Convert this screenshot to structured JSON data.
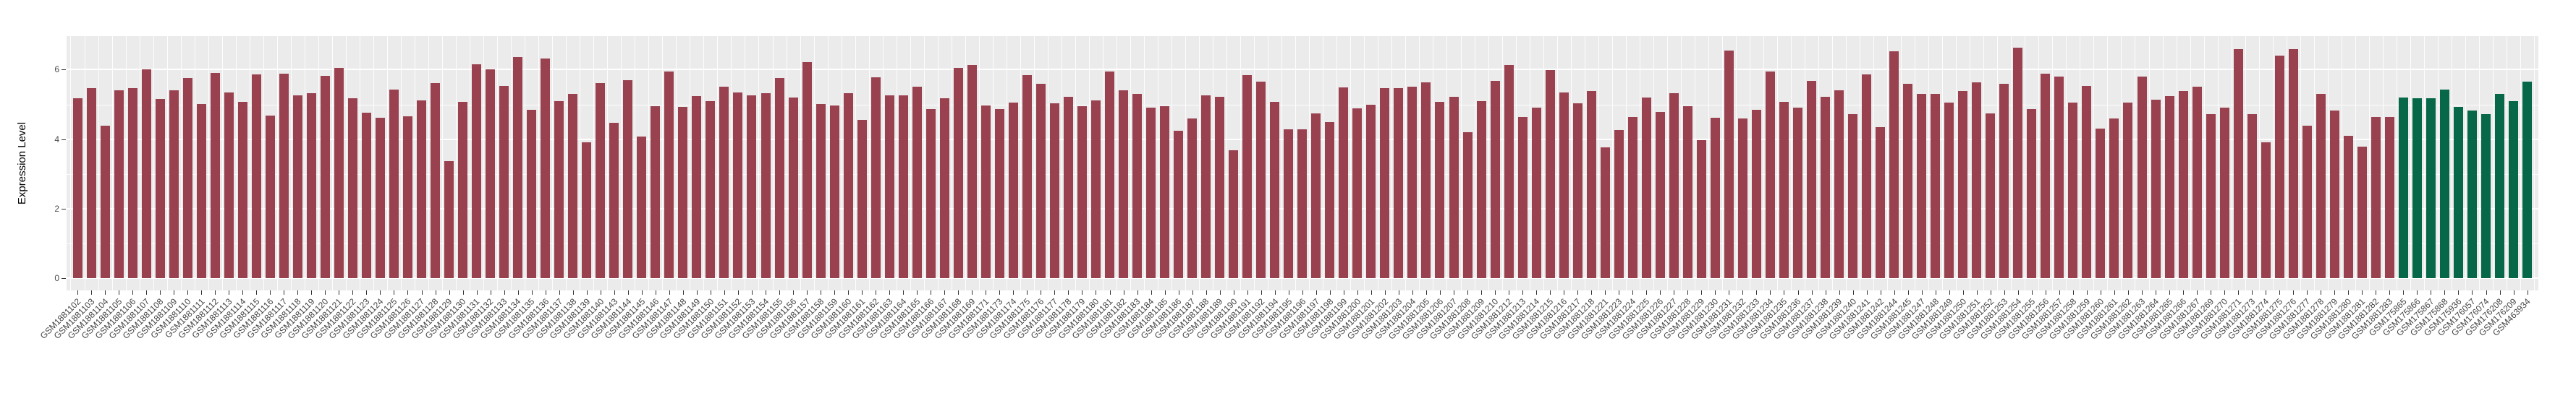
{
  "chart_data": {
    "type": "bar",
    "title": "",
    "xlabel": "",
    "ylabel": "Expression Level",
    "y_ticks": [
      0,
      2,
      4,
      6
    ],
    "y_minor_ticks": [
      1,
      3,
      5
    ],
    "ylim": [
      0,
      6.96
    ],
    "grid": true,
    "legend": false,
    "colors": {
      "group1_bar": "#9A4150",
      "group2_bar": "#066848",
      "panel_background": "#EBEBEB",
      "gridline": "#FFFFFF",
      "tick_text": "#4D4D4D",
      "axis_title_text": "#000000"
    },
    "group2_start_index": 169,
    "categories": [
      "GSM1881102",
      "GSM1881103",
      "GSM1881104",
      "GSM1881105",
      "GSM1881106",
      "GSM1881107",
      "GSM1881108",
      "GSM1881109",
      "GSM1881110",
      "GSM1881111",
      "GSM1881112",
      "GSM1881113",
      "GSM1881114",
      "GSM1881115",
      "GSM1881116",
      "GSM1881117",
      "GSM1881118",
      "GSM1881119",
      "GSM1881120",
      "GSM1881121",
      "GSM1881122",
      "GSM1881123",
      "GSM1881124",
      "GSM1881125",
      "GSM1881126",
      "GSM1881127",
      "GSM1881128",
      "GSM1881129",
      "GSM1881130",
      "GSM1881131",
      "GSM1881132",
      "GSM1881133",
      "GSM1881134",
      "GSM1881135",
      "GSM1881136",
      "GSM1881137",
      "GSM1881138",
      "GSM1881139",
      "GSM1881140",
      "GSM1881143",
      "GSM1881144",
      "GSM1881145",
      "GSM1881146",
      "GSM1881147",
      "GSM1881148",
      "GSM1881149",
      "GSM1881150",
      "GSM1881151",
      "GSM1881152",
      "GSM1881153",
      "GSM1881154",
      "GSM1881155",
      "GSM1881156",
      "GSM1881157",
      "GSM1881158",
      "GSM1881159",
      "GSM1881160",
      "GSM1881161",
      "GSM1881162",
      "GSM1881163",
      "GSM1881164",
      "GSM1881165",
      "GSM1881166",
      "GSM1881167",
      "GSM1881168",
      "GSM1881169",
      "GSM1881171",
      "GSM1881173",
      "GSM1881174",
      "GSM1881175",
      "GSM1881176",
      "GSM1881177",
      "GSM1881178",
      "GSM1881179",
      "GSM1881180",
      "GSM1881181",
      "GSM1881182",
      "GSM1881183",
      "GSM1881184",
      "GSM1881185",
      "GSM1881186",
      "GSM1881187",
      "GSM1881188",
      "GSM1881189",
      "GSM1881190",
      "GSM1881191",
      "GSM1881192",
      "GSM1881194",
      "GSM1881195",
      "GSM1881196",
      "GSM1881197",
      "GSM1881198",
      "GSM1881199",
      "GSM1881200",
      "GSM1881201",
      "GSM1881202",
      "GSM1881203",
      "GSM1881204",
      "GSM1881205",
      "GSM1881206",
      "GSM1881207",
      "GSM1881208",
      "GSM1881209",
      "GSM1881210",
      "GSM1881212",
      "GSM1881213",
      "GSM1881214",
      "GSM1881215",
      "GSM1881216",
      "GSM1881217",
      "GSM1881218",
      "GSM1881221",
      "GSM1881223",
      "GSM1881224",
      "GSM1881225",
      "GSM1881226",
      "GSM1881227",
      "GSM1881228",
      "GSM1881229",
      "GSM1881230",
      "GSM1881231",
      "GSM1881232",
      "GSM1881233",
      "GSM1881234",
      "GSM1881235",
      "GSM1881236",
      "GSM1881237",
      "GSM1881238",
      "GSM1881239",
      "GSM1881240",
      "GSM1881241",
      "GSM1881242",
      "GSM1881244",
      "GSM1881245",
      "GSM1881247",
      "GSM1881248",
      "GSM1881249",
      "GSM1881250",
      "GSM1881251",
      "GSM1881252",
      "GSM1881253",
      "GSM1881254",
      "GSM1881255",
      "GSM1881256",
      "GSM1881257",
      "GSM1881258",
      "GSM1881259",
      "GSM1881260",
      "GSM1881261",
      "GSM1881262",
      "GSM1881263",
      "GSM1881264",
      "GSM1881265",
      "GSM1881266",
      "GSM1881267",
      "GSM1881269",
      "GSM1881270",
      "GSM1881271",
      "GSM1881273",
      "GSM1881274",
      "GSM1881275",
      "GSM1881276",
      "GSM1881277",
      "GSM1881278",
      "GSM1881279",
      "GSM1881280",
      "GSM1881281",
      "GSM1881282",
      "GSM1881283",
      "GSM175865",
      "GSM175866",
      "GSM175867",
      "GSM175868",
      "GSM175936",
      "GSM176057",
      "GSM176074",
      "GSM176208",
      "GSM176209",
      "GSM463934"
    ],
    "values": [
      5.17,
      5.46,
      4.39,
      5.41,
      5.47,
      6.01,
      5.15,
      5.41,
      5.76,
      5.01,
      5.9,
      5.34,
      5.08,
      5.86,
      4.68,
      5.88,
      5.25,
      5.33,
      5.82,
      6.06,
      5.17,
      4.77,
      4.62,
      5.42,
      4.65,
      5.11,
      5.62,
      3.37,
      5.08,
      6.15,
      6.01,
      5.54,
      6.37,
      4.84,
      6.32,
      5.1,
      5.3,
      3.91,
      5.62,
      4.48,
      5.7,
      4.07,
      4.94,
      5.95,
      4.93,
      5.24,
      5.09,
      5.52,
      5.35,
      5.26,
      5.33,
      5.75,
      5.19,
      6.22,
      5.02,
      4.96,
      5.33,
      4.55,
      5.78,
      5.27,
      5.25,
      5.52,
      4.86,
      5.17,
      6.05,
      6.14,
      4.96,
      4.86,
      5.05,
      5.85,
      5.59,
      5.04,
      5.22,
      4.94,
      5.11,
      5.95,
      5.41,
      5.3,
      4.9,
      4.94,
      4.24,
      4.6,
      5.26,
      5.22,
      3.67,
      5.85,
      5.65,
      5.07,
      4.28,
      4.28,
      4.74,
      4.49,
      5.49,
      4.88,
      5.0,
      5.47,
      5.47,
      5.52,
      5.63,
      5.08,
      5.21,
      4.2,
      5.1,
      5.67,
      6.14,
      4.64,
      4.91,
      5.99,
      5.35,
      5.03,
      5.38,
      3.76,
      4.26,
      4.63,
      5.19,
      4.78,
      5.33,
      4.95,
      3.98,
      4.62,
      6.54,
      4.59,
      4.84,
      5.95,
      5.07,
      4.91,
      5.67,
      5.21,
      5.4,
      4.73,
      5.86,
      4.35,
      6.52,
      5.6,
      5.31,
      5.3,
      5.06,
      5.38,
      5.63,
      4.74,
      5.6,
      6.63,
      4.87,
      5.88,
      5.8,
      5.06,
      5.53,
      4.3,
      4.59,
      5.06,
      5.81,
      5.13,
      5.23,
      5.39,
      5.5,
      4.71,
      4.91,
      6.59,
      4.72,
      3.9,
      6.4,
      6.6,
      4.39,
      5.31,
      4.83,
      4.09,
      3.79,
      4.63,
      4.63,
      5.2,
      5.18,
      5.18,
      5.42,
      4.92,
      4.82,
      4.71,
      5.31,
      5.1,
      5.65
    ]
  }
}
